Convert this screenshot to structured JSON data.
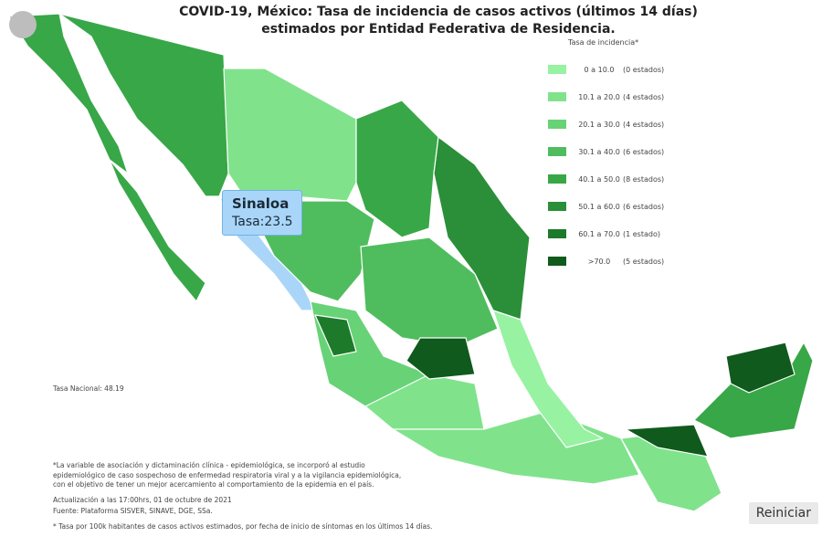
{
  "header": {
    "title_lines": [
      "COVID-19, México: Tasa de incidencia de casos activos (últimos 14 días)",
      "estimados por Entidad Federativa de Residencia."
    ]
  },
  "legend": {
    "title": "Tasa de incidencia*",
    "items": [
      {
        "range": "0 a 10.0",
        "count": "(0 estados)",
        "color": "#97f2a2"
      },
      {
        "range": "10.1 a 20.0",
        "count": "(4 estados)",
        "color": "#80e38c"
      },
      {
        "range": "20.1 a 30.0",
        "count": "(4 estados)",
        "color": "#68d277"
      },
      {
        "range": "30.1 a 40.0",
        "count": "(6 estados)",
        "color": "#4fbd5e"
      },
      {
        "range": "40.1 a 50.0",
        "count": "(8 estados)",
        "color": "#38a747"
      },
      {
        "range": "50.1 a 60.0",
        "count": "(6 estados)",
        "color": "#2a8f38"
      },
      {
        "range": "60.1 a 70.0",
        "count": "(1 estado)",
        "color": "#1d7a2b"
      },
      {
        "range": ">70.0",
        "count": "(5 estados)",
        "color": "#0f5a1c"
      }
    ]
  },
  "tooltip": {
    "state": "Sinaloa",
    "rate": "Tasa:23.5"
  },
  "national_rate": "Tasa Nacional: 48.19",
  "notes": {
    "variable_lines": [
      "*La variable de asociación y dictaminación clínica - epidemiológica, se incorporó al estudio",
      "epidemiológico de caso sospechoso de enfermedad respiratoria viral y a la vigilancia epidemiológica,",
      "con el objetivo de tener un mejor acercamiento al comportamiento de la epidemia en el país."
    ],
    "update": "Actualización a las 17:00hrs, 01 de octubre de 2021",
    "source": "Fuente: Plataforma SISVER, SINAVE, DGE, SSa.",
    "rate_definition": "* Tasa por 100k habitantes de casos activos estimados, por fecha de inicio de síntomas en los últimos 14 días."
  },
  "reset_button": "Reiniciar"
}
